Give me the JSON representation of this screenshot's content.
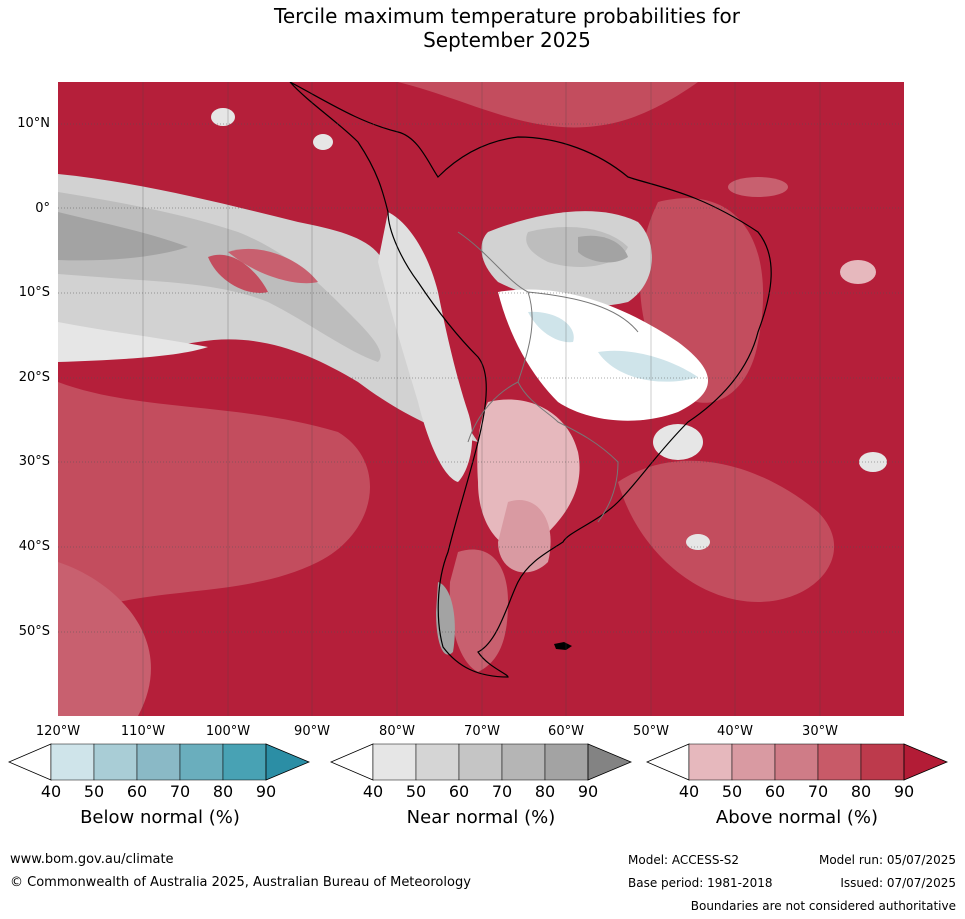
{
  "title_line1": "Tercile maximum temperature probabilities for",
  "title_line2": "September 2025",
  "lat_labels": [
    "10°N",
    "0°",
    "10°S",
    "20°S",
    "30°S",
    "40°S",
    "50°S"
  ],
  "lon_labels": [
    "120°W",
    "110°W",
    "100°W",
    "90°W",
    "80°W",
    "70°W",
    "60°W",
    "50°W",
    "40°W",
    "30°W"
  ],
  "colorbars": [
    {
      "label": "Below normal (%)",
      "ticks": [
        "40",
        "50",
        "60",
        "70",
        "80",
        "90"
      ],
      "colors": [
        "#ffffff",
        "#cfe4ea",
        "#a9cdd6",
        "#8ab9c6",
        "#6aaebd",
        "#48a2b4",
        "#2b8ea5"
      ]
    },
    {
      "label": "Near normal (%)",
      "ticks": [
        "40",
        "50",
        "60",
        "70",
        "80",
        "90"
      ],
      "colors": [
        "#ffffff",
        "#e6e6e6",
        "#d5d5d5",
        "#c5c5c5",
        "#b5b5b5",
        "#a3a3a3",
        "#838383"
      ]
    },
    {
      "label": "Above normal (%)",
      "ticks": [
        "40",
        "50",
        "60",
        "70",
        "80",
        "90"
      ],
      "colors": [
        "#ffffff",
        "#e6b8bd",
        "#d99aa2",
        "#cf7c87",
        "#c85a68",
        "#bd3a4c",
        "#b31c36"
      ]
    }
  ],
  "footer": {
    "website": "www.bom.gov.au/climate",
    "copyright": "© Commonwealth of Australia 2025, Australian Bureau of Meteorology",
    "model": "Model: ACCESS-S2",
    "base_period": "Base period: 1981-2018",
    "model_run": "Model run: 05/07/2025",
    "issued": "Issued: 07/07/2025",
    "disclaimer": "Boundaries are not considered authoritative"
  }
}
